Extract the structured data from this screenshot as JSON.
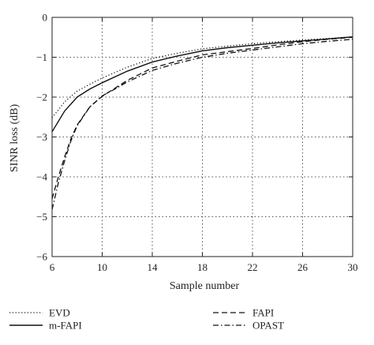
{
  "chart_data": {
    "type": "line",
    "title": "",
    "xlabel": "Sample number",
    "ylabel": "SINR loss (dB)",
    "xlim": [
      6,
      30
    ],
    "ylim": [
      -6,
      0
    ],
    "xticks": [
      6,
      10,
      14,
      18,
      22,
      26,
      30
    ],
    "yticks": [
      0,
      -1,
      -2,
      -3,
      -4,
      -5,
      -6
    ],
    "xtick_labels": [
      "6",
      "10",
      "14",
      "18",
      "22",
      "26",
      "30"
    ],
    "ytick_labels": [
      "0",
      "−1",
      "−2",
      "−3",
      "−4",
      "−5",
      "−6"
    ],
    "grid": true,
    "legend_position": "bottom",
    "series": [
      {
        "name": "EVD",
        "style": "dotted",
        "x": [
          6,
          7,
          8,
          9,
          10,
          12,
          14,
          16,
          18,
          20,
          22,
          24,
          26,
          28,
          30
        ],
        "y": [
          -2.52,
          -2.12,
          -1.85,
          -1.68,
          -1.52,
          -1.25,
          -1.03,
          -0.9,
          -0.79,
          -0.72,
          -0.66,
          -0.61,
          -0.57,
          -0.53,
          -0.49
        ]
      },
      {
        "name": "m-FAPI",
        "style": "solid",
        "x": [
          6,
          7,
          8,
          9,
          10,
          12,
          14,
          16,
          18,
          20,
          22,
          24,
          26,
          28,
          30
        ],
        "y": [
          -2.87,
          -2.35,
          -2.0,
          -1.8,
          -1.64,
          -1.35,
          -1.12,
          -0.97,
          -0.84,
          -0.76,
          -0.7,
          -0.64,
          -0.59,
          -0.54,
          -0.49
        ]
      },
      {
        "name": "FAPI",
        "style": "dashed",
        "x": [
          6,
          6.5,
          7,
          7.5,
          8,
          9,
          10,
          11,
          12,
          14,
          16,
          18,
          20,
          22,
          24,
          26,
          28,
          30
        ],
        "y": [
          -4.55,
          -4.0,
          -3.5,
          -3.05,
          -2.7,
          -2.25,
          -1.98,
          -1.78,
          -1.58,
          -1.27,
          -1.1,
          -0.94,
          -0.86,
          -0.78,
          -0.69,
          -0.61,
          -0.55,
          -0.5
        ]
      },
      {
        "name": "OPAST",
        "style": "dashdot",
        "x": [
          6,
          6.5,
          7,
          7.5,
          8,
          9,
          10,
          11,
          12,
          14,
          16,
          18,
          20,
          22,
          24,
          26,
          28,
          30
        ],
        "y": [
          -4.82,
          -4.15,
          -3.6,
          -3.1,
          -2.72,
          -2.25,
          -1.97,
          -1.8,
          -1.62,
          -1.33,
          -1.15,
          -1.0,
          -0.9,
          -0.82,
          -0.74,
          -0.66,
          -0.6,
          -0.55
        ]
      }
    ]
  }
}
